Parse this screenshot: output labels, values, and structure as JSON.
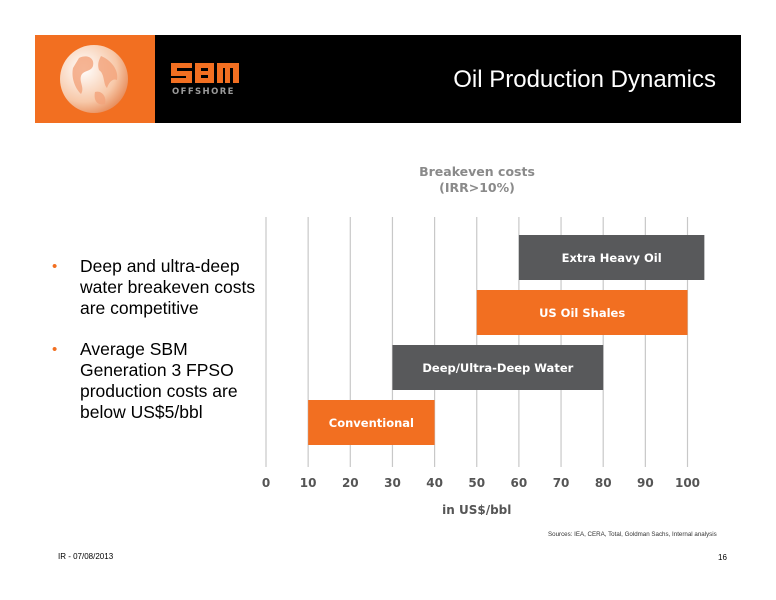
{
  "header": {
    "title": "Oil Production Dynamics",
    "logo_text": "SBM",
    "logo_subtext": "OFFSHORE",
    "accent_color": "#f26f21",
    "background_color": "#000000"
  },
  "bullets": [
    "Deep and ultra-deep water breakeven costs are competitive",
    "Average SBM Generation 3 FPSO production costs are below US$5/bbl"
  ],
  "chart_data": {
    "type": "bar",
    "orientation": "horizontal-floating",
    "title_line1": "Breakeven costs",
    "title_line2": "(IRR>10%)",
    "xlabel": "in US$/bbl",
    "xlim": [
      0,
      100
    ],
    "xticks": [
      0,
      10,
      20,
      30,
      40,
      50,
      60,
      70,
      80,
      90,
      100
    ],
    "grid": true,
    "bars": [
      {
        "label": "Extra Heavy Oil",
        "start": 60,
        "end": 104,
        "color": "#58595b"
      },
      {
        "label": "US Oil Shales",
        "start": 50,
        "end": 100,
        "color": "#f26f21"
      },
      {
        "label": "Deep/Ultra-Deep Water",
        "start": 30,
        "end": 80,
        "color": "#58595b"
      },
      {
        "label": "Conventional",
        "start": 10,
        "end": 40,
        "color": "#f26f21"
      }
    ]
  },
  "sources": "Sources: IEA, CERA, Total, Goldman Sachs, Internal analysis",
  "footer": {
    "date": "IR - 07/08/2013",
    "page": "16"
  }
}
